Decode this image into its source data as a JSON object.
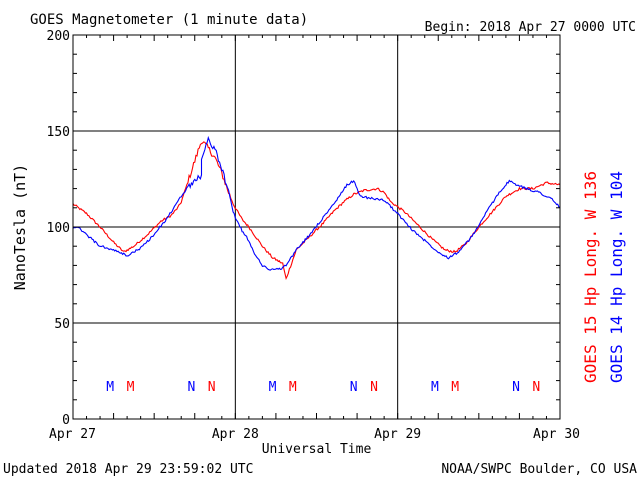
{
  "header": {
    "title": "GOES Magnetometer (1 minute data)",
    "begin_label": "Begin:  2018 Apr 27 0000 UTC"
  },
  "footer": {
    "updated": "Updated 2018 Apr 29 23:59:02 UTC",
    "credit": "NOAA/SWPC Boulder, CO USA"
  },
  "colors": {
    "goes15": "#ff0000",
    "goes14": "#0000ff",
    "axis": "#000000"
  },
  "chart_data": {
    "type": "line",
    "title": "GOES Magnetometer (1 minute data)",
    "xlabel": "Universal Time",
    "ylabel": "NanoTesla (nT)",
    "xlim": [
      0,
      72
    ],
    "x_unit": "hours",
    "ylim": [
      0,
      200
    ],
    "grid": true,
    "x_ticks": [
      {
        "x": 0,
        "label": "Apr 27"
      },
      {
        "x": 24,
        "label": "Apr 28"
      },
      {
        "x": 48,
        "label": "Apr 29"
      },
      {
        "x": 72,
        "label": "Apr 30"
      }
    ],
    "y_ticks": [
      0,
      50,
      100,
      150,
      200
    ],
    "series": [
      {
        "name": "GOES 15 Hp  Long. W 136",
        "color": "#ff0000",
        "points": [
          [
            0,
            112
          ],
          [
            2,
            107
          ],
          [
            4,
            100
          ],
          [
            6,
            92
          ],
          [
            7.5,
            87
          ],
          [
            9,
            90
          ],
          [
            11,
            96
          ],
          [
            13,
            103
          ],
          [
            14.5,
            106
          ],
          [
            15.5,
            110
          ],
          [
            16,
            113
          ],
          [
            19,
            145
          ],
          [
            20,
            141
          ],
          [
            21,
            136
          ],
          [
            22,
            128
          ],
          [
            23,
            118
          ],
          [
            24,
            110
          ],
          [
            25,
            104
          ],
          [
            26,
            100
          ],
          [
            27,
            95
          ],
          [
            28,
            90
          ],
          [
            29.5,
            84
          ],
          [
            31,
            81
          ],
          [
            31.5,
            73
          ],
          [
            32,
            78
          ],
          [
            33,
            88
          ],
          [
            35,
            95
          ],
          [
            37,
            102
          ],
          [
            38.5,
            108
          ],
          [
            40,
            113
          ],
          [
            41.5,
            117
          ],
          [
            43,
            119
          ],
          [
            45,
            120
          ],
          [
            46,
            118
          ],
          [
            47,
            113
          ],
          [
            49,
            108
          ],
          [
            51,
            101
          ],
          [
            53,
            94
          ],
          [
            55,
            88
          ],
          [
            56.5,
            87
          ],
          [
            58,
            91
          ],
          [
            60,
            100
          ],
          [
            62,
            108
          ],
          [
            64,
            116
          ],
          [
            66,
            120
          ],
          [
            68,
            120
          ],
          [
            70,
            123
          ],
          [
            72,
            122
          ]
        ]
      },
      {
        "name": "GOES 14 Hp  Long. W 104",
        "color": "#0000ff",
        "points": [
          [
            0,
            100
          ],
          [
            1,
            99
          ],
          [
            2,
            96
          ],
          [
            4,
            90
          ],
          [
            6,
            88
          ],
          [
            8,
            85
          ],
          [
            10,
            89
          ],
          [
            12,
            96
          ],
          [
            14,
            105
          ],
          [
            16,
            116
          ],
          [
            17,
            121
          ],
          [
            18,
            124
          ],
          [
            19,
            127
          ],
          [
            19,
            136
          ],
          [
            20,
            145
          ],
          [
            21,
            141
          ],
          [
            22,
            130
          ],
          [
            23,
            118
          ],
          [
            24,
            105
          ],
          [
            25,
            98
          ],
          [
            26,
            93
          ],
          [
            27,
            85
          ],
          [
            28,
            80
          ],
          [
            29,
            78
          ],
          [
            30.5,
            78
          ],
          [
            31.5,
            80
          ],
          [
            33,
            88
          ],
          [
            35,
            96
          ],
          [
            37,
            105
          ],
          [
            39,
            114
          ],
          [
            40.5,
            122
          ],
          [
            41.5,
            124
          ],
          [
            42.5,
            116
          ],
          [
            44,
            115
          ],
          [
            46,
            114
          ],
          [
            48,
            107
          ],
          [
            50,
            99
          ],
          [
            52,
            93
          ],
          [
            54,
            87
          ],
          [
            55.5,
            84
          ],
          [
            57,
            87
          ],
          [
            59,
            95
          ],
          [
            61,
            107
          ],
          [
            63,
            118
          ],
          [
            64.5,
            124
          ],
          [
            65.5,
            122
          ],
          [
            67,
            120
          ],
          [
            69,
            118
          ],
          [
            71,
            114
          ],
          [
            72,
            110
          ]
        ]
      }
    ],
    "annotations": [
      {
        "x": 5.5,
        "label": "M",
        "color": "#0000ff"
      },
      {
        "x": 8.5,
        "label": "M",
        "color": "#ff0000"
      },
      {
        "x": 17.5,
        "label": "N",
        "color": "#0000ff"
      },
      {
        "x": 20.5,
        "label": "N",
        "color": "#ff0000"
      },
      {
        "x": 29.5,
        "label": "M",
        "color": "#0000ff"
      },
      {
        "x": 32.5,
        "label": "M",
        "color": "#ff0000"
      },
      {
        "x": 41.5,
        "label": "N",
        "color": "#0000ff"
      },
      {
        "x": 44.5,
        "label": "N",
        "color": "#ff0000"
      },
      {
        "x": 53.5,
        "label": "M",
        "color": "#0000ff"
      },
      {
        "x": 56.5,
        "label": "M",
        "color": "#ff0000"
      },
      {
        "x": 65.5,
        "label": "N",
        "color": "#0000ff"
      },
      {
        "x": 68.5,
        "label": "N",
        "color": "#ff0000"
      }
    ]
  }
}
